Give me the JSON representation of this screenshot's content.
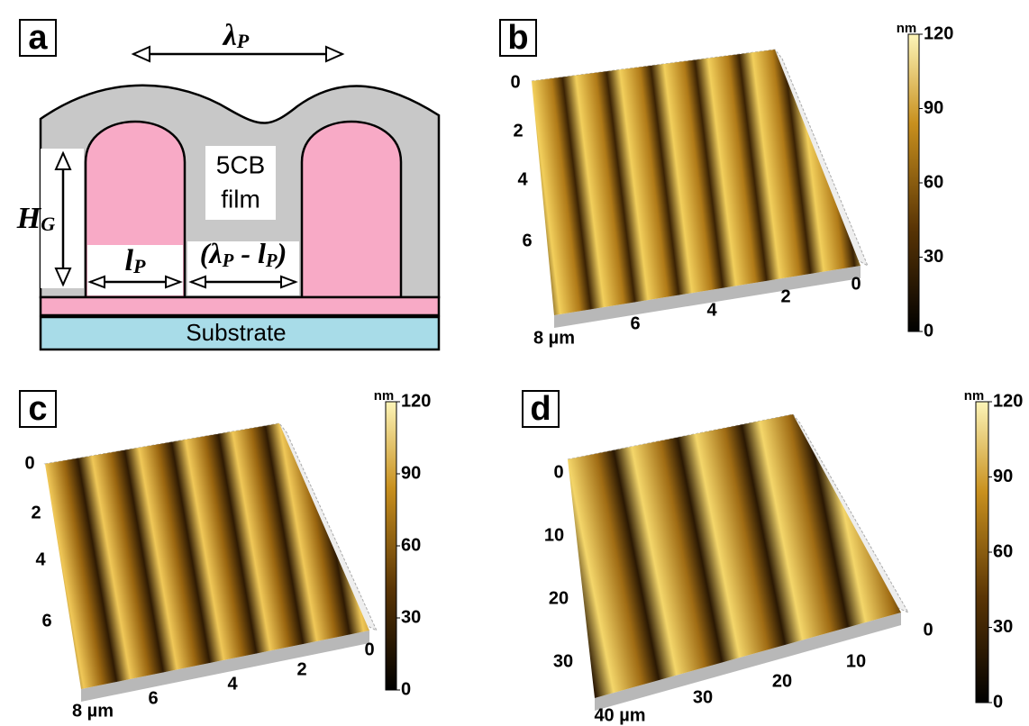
{
  "panel_a": {
    "label": "a",
    "lambda": [
      "λ",
      "P"
    ],
    "film": [
      "5CB",
      "film"
    ],
    "height": [
      "H",
      "G"
    ],
    "width": [
      "l",
      "P"
    ],
    "gap": [
      "(λ",
      "P",
      " - l",
      "P",
      ")"
    ],
    "substrate": "Substrate"
  },
  "panel_b": {
    "label": "b",
    "side_ticks": [
      "0",
      "2",
      "4",
      "6"
    ],
    "front_ticks": [
      "8 µm",
      "6",
      "4",
      "2",
      "0"
    ],
    "colorbar": {
      "unit": "nm",
      "ticks": [
        120,
        90,
        60,
        30,
        0
      ]
    }
  },
  "panel_c": {
    "label": "c",
    "side_ticks": [
      "0",
      "2",
      "4",
      "6"
    ],
    "front_ticks": [
      "8 µm",
      "6",
      "4",
      "2",
      "0"
    ],
    "colorbar": {
      "unit": "nm",
      "ticks": [
        120,
        90,
        60,
        30,
        0
      ]
    }
  },
  "panel_d": {
    "label": "d",
    "side_ticks": [
      "0",
      "10",
      "20",
      "30"
    ],
    "front_ticks": [
      "40 µm",
      "30",
      "20",
      "10",
      "0"
    ],
    "colorbar": {
      "unit": "nm",
      "ticks": [
        120,
        90,
        60,
        30,
        0
      ]
    }
  }
}
